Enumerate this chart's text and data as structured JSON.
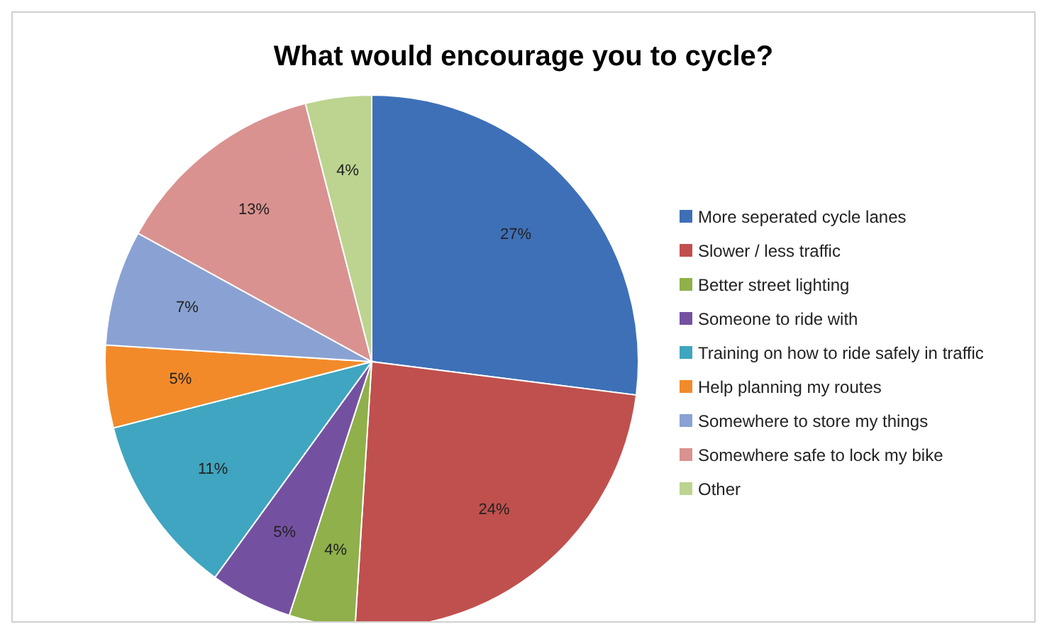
{
  "chart_data": {
    "type": "pie",
    "title": "What would encourage you to cycle?",
    "categories": [
      "More seperated cycle lanes",
      "Slower / less traffic",
      "Better street lighting",
      "Someone to ride with",
      "Training on how to ride safely in traffic",
      "Help planning my routes",
      "Somewhere to store my things",
      "Somewhere safe to lock my bike",
      "Other"
    ],
    "values": [
      27,
      24,
      4,
      5,
      11,
      5,
      7,
      13,
      4
    ],
    "value_labels": [
      "27%",
      "24%",
      "4%",
      "5%",
      "11%",
      "5%",
      "7%",
      "13%",
      "4%"
    ],
    "colors": [
      "#3e70b8",
      "#c0504d",
      "#8fb04a",
      "#7451a0",
      "#3fa5c0",
      "#f28a2a",
      "#8aa2d3",
      "#d99290",
      "#bcd48f"
    ],
    "legend": "right"
  }
}
